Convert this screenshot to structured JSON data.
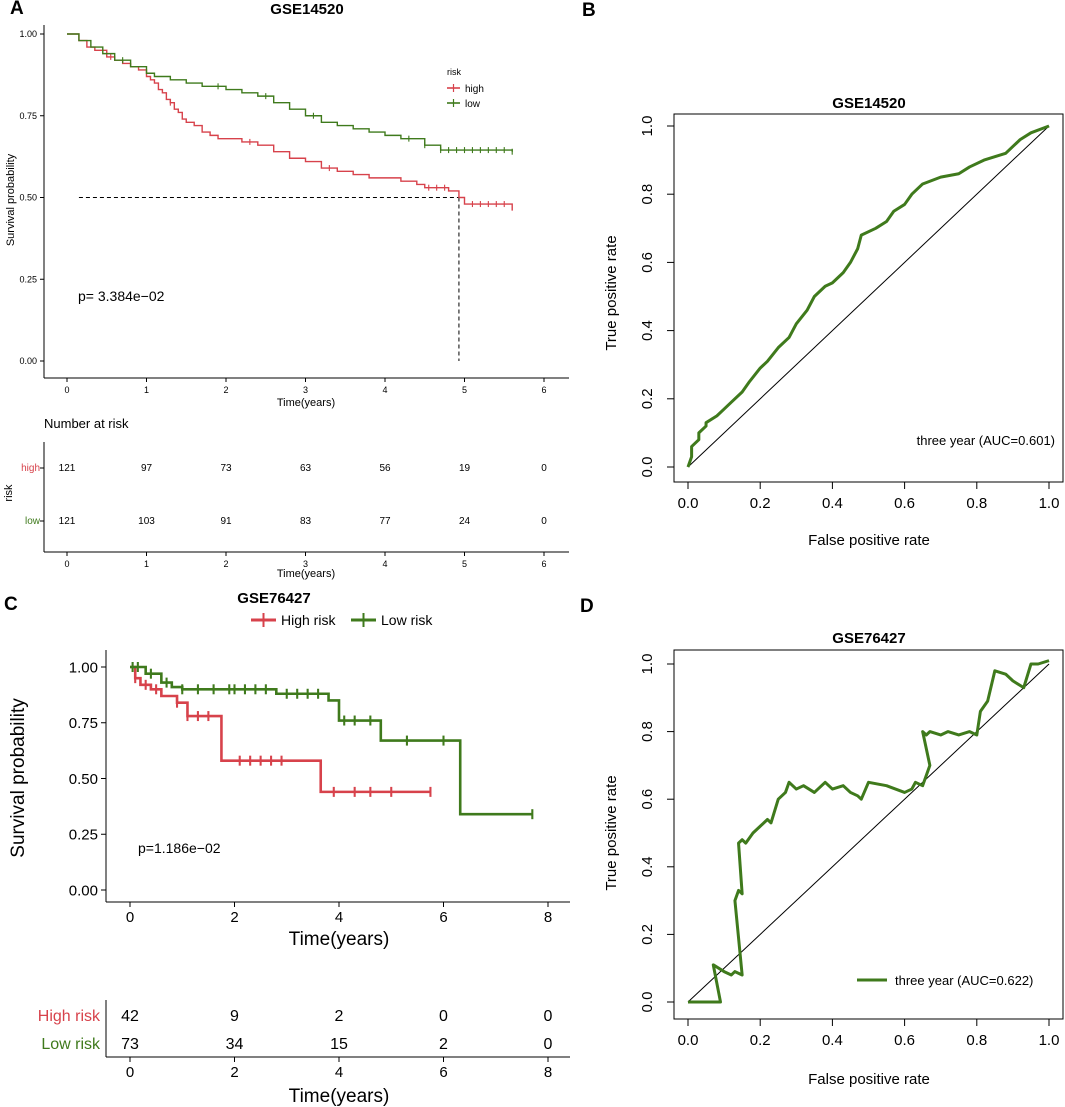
{
  "colors": {
    "high": "#d7424b",
    "low": "#3f7a1c",
    "axis": "#000000"
  },
  "panel_labels": {
    "a": "A",
    "b": "B",
    "c": "C",
    "d": "D"
  },
  "chart_data": [
    {
      "id": "A",
      "type": "line",
      "title": "GSE14520",
      "xlabel": "Time(years)",
      "ylabel": "Survival probability",
      "xlim": [
        0,
        6
      ],
      "ylim": [
        0,
        1
      ],
      "xticks": [
        "0",
        "1",
        "2",
        "3",
        "4",
        "5",
        "6"
      ],
      "yticks": [
        "0.00",
        "0.25",
        "0.50",
        "0.75",
        "1.00"
      ],
      "legend": {
        "title": "risk",
        "entries": [
          "high",
          "low"
        ]
      },
      "pvalue": "p= 3.384e−02",
      "median_line": {
        "y": 0.5,
        "x": 4.93
      },
      "series": [
        {
          "name": "high",
          "color_key": "high",
          "x": [
            0,
            0.15,
            0.25,
            0.35,
            0.5,
            0.6,
            0.7,
            0.8,
            0.9,
            1.0,
            1.05,
            1.1,
            1.15,
            1.2,
            1.25,
            1.3,
            1.35,
            1.4,
            1.45,
            1.5,
            1.6,
            1.7,
            1.8,
            1.9,
            2.0,
            2.2,
            2.4,
            2.6,
            2.8,
            3.0,
            3.2,
            3.4,
            3.6,
            3.8,
            4.0,
            4.2,
            4.4,
            4.5,
            4.6,
            4.8,
            4.93,
            5.0,
            5.6
          ],
          "y": [
            1,
            0.98,
            0.96,
            0.95,
            0.93,
            0.92,
            0.91,
            0.9,
            0.89,
            0.87,
            0.86,
            0.85,
            0.83,
            0.82,
            0.8,
            0.79,
            0.77,
            0.76,
            0.74,
            0.73,
            0.72,
            0.7,
            0.69,
            0.68,
            0.68,
            0.67,
            0.66,
            0.64,
            0.62,
            0.61,
            0.59,
            0.58,
            0.57,
            0.56,
            0.56,
            0.55,
            0.54,
            0.53,
            0.53,
            0.52,
            0.5,
            0.48,
            0.46
          ],
          "censors_x": [
            0.55,
            1.3,
            2.3,
            3.3,
            4.55,
            4.65,
            4.75,
            5.1,
            5.2,
            5.3,
            5.4,
            5.5
          ]
        },
        {
          "name": "low",
          "color_key": "low",
          "x": [
            0,
            0.15,
            0.3,
            0.45,
            0.6,
            0.8,
            1.0,
            1.1,
            1.3,
            1.5,
            1.7,
            2.0,
            2.2,
            2.4,
            2.6,
            2.8,
            3.0,
            3.2,
            3.4,
            3.6,
            3.8,
            4.0,
            4.2,
            4.5,
            4.7,
            5.6
          ],
          "y": [
            1,
            0.98,
            0.96,
            0.94,
            0.92,
            0.9,
            0.88,
            0.87,
            0.86,
            0.85,
            0.84,
            0.83,
            0.82,
            0.81,
            0.79,
            0.77,
            0.75,
            0.73,
            0.72,
            0.71,
            0.7,
            0.69,
            0.68,
            0.66,
            0.645,
            0.64
          ],
          "censors_x": [
            0.7,
            1.9,
            2.5,
            3.1,
            4.3,
            4.5,
            4.7,
            4.8,
            4.9,
            5.0,
            5.1,
            5.2,
            5.3,
            5.4,
            5.5,
            5.6
          ]
        }
      ],
      "risk_table": {
        "title": "Number at risk",
        "ylabel": "risk",
        "xlabel": "Time(years)",
        "xticks": [
          "0",
          "1",
          "2",
          "3",
          "4",
          "5",
          "6"
        ],
        "rows": [
          {
            "label": "high",
            "values": [
              "121",
              "97",
              "73",
              "63",
              "56",
              "19",
              "0"
            ]
          },
          {
            "label": "low",
            "values": [
              "121",
              "103",
              "91",
              "83",
              "77",
              "24",
              "0"
            ]
          }
        ]
      }
    },
    {
      "id": "B",
      "type": "line",
      "title": "GSE14520",
      "xlabel": "False positive rate",
      "ylabel": "True positive rate",
      "xlim": [
        0,
        1
      ],
      "ylim": [
        0,
        1
      ],
      "xticks": [
        "0.0",
        "0.2",
        "0.4",
        "0.6",
        "0.8",
        "1.0"
      ],
      "yticks": [
        "0.0",
        "0.2",
        "0.4",
        "0.6",
        "0.8",
        "1.0"
      ],
      "legend_text": "three year (AUC=0.601)",
      "series": [
        {
          "name": "three year",
          "color_key": "low",
          "x": [
            0,
            0.01,
            0.01,
            0.03,
            0.03,
            0.05,
            0.05,
            0.08,
            0.1,
            0.12,
            0.15,
            0.17,
            0.2,
            0.22,
            0.25,
            0.28,
            0.3,
            0.33,
            0.35,
            0.38,
            0.4,
            0.43,
            0.45,
            0.47,
            0.48,
            0.52,
            0.55,
            0.57,
            0.6,
            0.62,
            0.65,
            0.7,
            0.75,
            0.78,
            0.82,
            0.85,
            0.88,
            0.9,
            0.92,
            0.95,
            1.0
          ],
          "y": [
            0,
            0.03,
            0.06,
            0.08,
            0.1,
            0.12,
            0.13,
            0.15,
            0.17,
            0.19,
            0.22,
            0.25,
            0.29,
            0.31,
            0.35,
            0.38,
            0.42,
            0.46,
            0.5,
            0.53,
            0.54,
            0.57,
            0.6,
            0.64,
            0.68,
            0.7,
            0.72,
            0.75,
            0.77,
            0.8,
            0.83,
            0.85,
            0.86,
            0.88,
            0.9,
            0.91,
            0.92,
            0.94,
            0.96,
            0.98,
            1.0
          ]
        }
      ]
    },
    {
      "id": "C",
      "type": "line",
      "title": "GSE76427",
      "xlabel": "Time(years)",
      "ylabel": "Survival probability",
      "xlim": [
        0,
        8
      ],
      "ylim": [
        0,
        1
      ],
      "xticks": [
        "0",
        "2",
        "4",
        "6",
        "8"
      ],
      "yticks": [
        "0.00",
        "0.25",
        "0.50",
        "0.75",
        "1.00"
      ],
      "legend": {
        "entries": [
          "High risk",
          "Low risk"
        ]
      },
      "pvalue": "p=1.186e−02",
      "series": [
        {
          "name": "High risk",
          "color_key": "high",
          "x": [
            0,
            0.1,
            0.2,
            0.4,
            0.6,
            0.9,
            1.1,
            1.7,
            1.75,
            3.6,
            3.65,
            5.75
          ],
          "y": [
            1,
            0.95,
            0.92,
            0.9,
            0.87,
            0.84,
            0.78,
            0.78,
            0.58,
            0.58,
            0.44,
            0.44
          ],
          "censors_x": [
            0.1,
            0.3,
            0.5,
            0.9,
            1.1,
            1.3,
            1.5,
            2.1,
            2.3,
            2.5,
            2.7,
            2.9,
            3.9,
            4.3,
            4.6,
            5.0,
            5.75
          ]
        },
        {
          "name": "Low risk",
          "color_key": "low",
          "x": [
            0,
            0.3,
            0.6,
            0.8,
            1.0,
            2.8,
            3.8,
            4.0,
            4.6,
            4.8,
            6.3,
            6.32,
            7.7
          ],
          "y": [
            1,
            0.97,
            0.93,
            0.91,
            0.9,
            0.88,
            0.85,
            0.76,
            0.76,
            0.67,
            0.67,
            0.34,
            0.34
          ],
          "censors_x": [
            0.05,
            0.15,
            0.4,
            0.7,
            1.0,
            1.3,
            1.6,
            1.9,
            2.0,
            2.2,
            2.4,
            2.6,
            3.0,
            3.2,
            3.4,
            3.6,
            4.1,
            4.3,
            4.6,
            5.3,
            6.0,
            7.7
          ]
        }
      ],
      "risk_table": {
        "xlabel": "Time(years)",
        "xticks": [
          "0",
          "2",
          "4",
          "6",
          "8"
        ],
        "rows": [
          {
            "label": "High risk",
            "values": [
              "42",
              "9",
              "2",
              "0",
              "0"
            ]
          },
          {
            "label": "Low risk",
            "values": [
              "73",
              "34",
              "15",
              "2",
              "0"
            ]
          }
        ]
      }
    },
    {
      "id": "D",
      "type": "line",
      "title": "GSE76427",
      "xlabel": "False positive rate",
      "ylabel": "True positive rate",
      "xlim": [
        0,
        1
      ],
      "ylim": [
        0,
        1
      ],
      "xticks": [
        "0.0",
        "0.2",
        "0.4",
        "0.6",
        "0.8",
        "1.0"
      ],
      "yticks": [
        "0.0",
        "0.2",
        "0.4",
        "0.6",
        "0.8",
        "1.0"
      ],
      "legend_text": "three year (AUC=0.622)",
      "series": [
        {
          "name": "three year",
          "color_key": "low",
          "x": [
            0,
            0.09,
            0.07,
            0.1,
            0.12,
            0.13,
            0.15,
            0.13,
            0.14,
            0.15,
            0.14,
            0.15,
            0.16,
            0.18,
            0.2,
            0.22,
            0.23,
            0.25,
            0.27,
            0.28,
            0.3,
            0.32,
            0.35,
            0.38,
            0.4,
            0.43,
            0.45,
            0.47,
            0.48,
            0.5,
            0.55,
            0.6,
            0.62,
            0.63,
            0.65,
            0.67,
            0.65,
            0.66,
            0.67,
            0.7,
            0.72,
            0.75,
            0.78,
            0.8,
            0.81,
            0.83,
            0.85,
            0.88,
            0.9,
            0.93,
            0.95,
            0.97,
            1.0
          ],
          "y": [
            0,
            0,
            0.11,
            0.09,
            0.08,
            0.09,
            0.08,
            0.3,
            0.33,
            0.32,
            0.47,
            0.48,
            0.47,
            0.5,
            0.52,
            0.54,
            0.53,
            0.6,
            0.62,
            0.65,
            0.63,
            0.64,
            0.62,
            0.65,
            0.63,
            0.64,
            0.62,
            0.61,
            0.6,
            0.65,
            0.64,
            0.62,
            0.63,
            0.65,
            0.64,
            0.7,
            0.8,
            0.79,
            0.8,
            0.79,
            0.8,
            0.79,
            0.8,
            0.79,
            0.86,
            0.89,
            0.98,
            0.97,
            0.95,
            0.93,
            1.0,
            1.0,
            1.01
          ]
        }
      ]
    }
  ]
}
